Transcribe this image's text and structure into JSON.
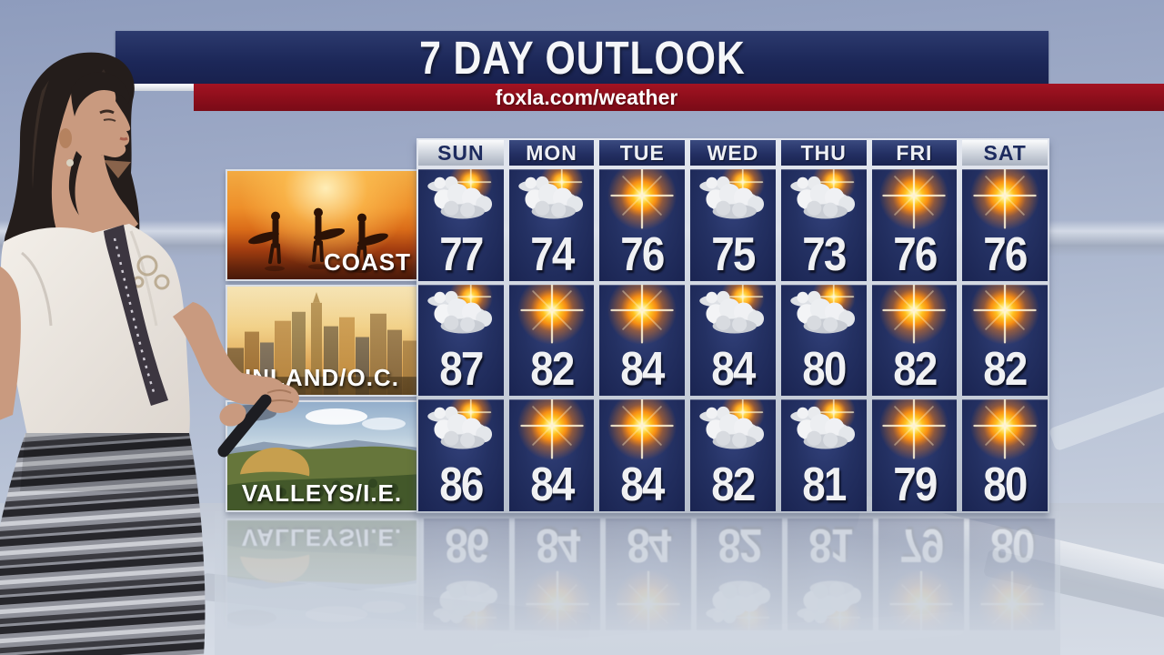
{
  "header": {
    "title": "7 DAY OUTLOOK",
    "url": "foxla.com/weather"
  },
  "forecast": {
    "days": [
      "SUN",
      "MON",
      "TUE",
      "WED",
      "THU",
      "FRI",
      "SAT"
    ],
    "weekend": [
      true,
      false,
      false,
      false,
      false,
      false,
      true
    ],
    "rows": [
      {
        "region": "COAST",
        "temps": [
          77,
          74,
          76,
          75,
          73,
          76,
          76
        ],
        "conditions": [
          "partly-cloudy",
          "partly-cloudy",
          "sunny",
          "partly-cloudy",
          "partly-cloudy",
          "sunny",
          "sunny"
        ]
      },
      {
        "region": "INLAND/O.C.",
        "temps": [
          87,
          82,
          84,
          84,
          80,
          82,
          82
        ],
        "conditions": [
          "partly-cloudy",
          "sunny",
          "sunny",
          "partly-cloudy",
          "partly-cloudy",
          "sunny",
          "sunny"
        ]
      },
      {
        "region": "VALLEYS/I.E.",
        "temps": [
          86,
          84,
          84,
          82,
          81,
          79,
          80
        ],
        "conditions": [
          "partly-cloudy",
          "sunny",
          "sunny",
          "partly-cloudy",
          "partly-cloudy",
          "sunny",
          "sunny"
        ]
      }
    ]
  },
  "chart_data": {
    "type": "table",
    "title": "7 DAY OUTLOOK",
    "subtitle": "foxla.com/weather",
    "categories": [
      "SUN",
      "MON",
      "TUE",
      "WED",
      "THU",
      "FRI",
      "SAT"
    ],
    "series": [
      {
        "name": "COAST",
        "values": [
          77,
          74,
          76,
          75,
          73,
          76,
          76
        ],
        "conditions": [
          "partly-cloudy",
          "partly-cloudy",
          "sunny",
          "partly-cloudy",
          "partly-cloudy",
          "sunny",
          "sunny"
        ]
      },
      {
        "name": "INLAND/O.C.",
        "values": [
          87,
          82,
          84,
          84,
          80,
          82,
          82
        ],
        "conditions": [
          "partly-cloudy",
          "sunny",
          "sunny",
          "partly-cloudy",
          "partly-cloudy",
          "sunny",
          "sunny"
        ]
      },
      {
        "name": "VALLEYS/I.E.",
        "values": [
          86,
          84,
          84,
          82,
          81,
          79,
          80
        ],
        "conditions": [
          "partly-cloudy",
          "sunny",
          "sunny",
          "partly-cloudy",
          "partly-cloudy",
          "sunny",
          "sunny"
        ]
      }
    ],
    "legend_position": "none",
    "grid": false
  },
  "scene": {
    "presenter": "weather-presenter",
    "region_images": [
      "surfers-at-sunset",
      "city-skyline",
      "valley-aerial"
    ]
  },
  "colors": {
    "title_navy": "#1c2758",
    "banner_red": "#8c0e1b",
    "cell_navy": "#243163",
    "grid_silver": "#c3cad6",
    "weekend_header": "#d4d9e1",
    "temp_text": "#f0f1f3",
    "sun_orange": "#ffa81e",
    "sky_top": "#8e9cbd",
    "floor": "#ced5e0"
  }
}
